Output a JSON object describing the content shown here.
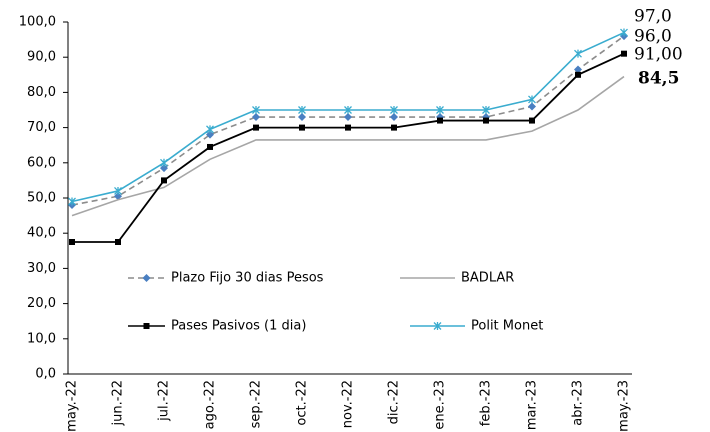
{
  "chart_data": {
    "type": "line",
    "categories": [
      "may.-22",
      "jun.-22",
      "jul.-22",
      "ago.-22",
      "sep.-22",
      "oct.-22",
      "nov.-22",
      "dic.-22",
      "ene.-23",
      "feb.-23",
      "mar.-23",
      "abr.-23",
      "may.-23"
    ],
    "series": [
      {
        "name": "Plazo Fijo 30 dias Pesos",
        "color": "#8c8c8c",
        "marker_color": "#4a7fc1",
        "marker": "diamond",
        "dash": true,
        "values": [
          48,
          50.5,
          58.5,
          68,
          73,
          73,
          73,
          73,
          73,
          73,
          76,
          86.5,
          96
        ],
        "value_labels": [
          null,
          null,
          null,
          null,
          null,
          null,
          null,
          null,
          null,
          null,
          null,
          null,
          "96,0"
        ]
      },
      {
        "name": "BADLAR",
        "color": "#a6a6a6",
        "marker": "none",
        "dash": false,
        "values": [
          45,
          49.5,
          53,
          61,
          66.5,
          66.5,
          66.5,
          66.5,
          66.5,
          66.5,
          69,
          75,
          84.5
        ],
        "value_labels": [
          null,
          null,
          null,
          null,
          null,
          null,
          null,
          null,
          null,
          null,
          null,
          null,
          "84,5"
        ]
      },
      {
        "name": "Pases Pasivos (1 dia)",
        "color": "#000000",
        "marker": "square",
        "dash": false,
        "values": [
          37.5,
          37.5,
          55,
          64.5,
          70,
          70,
          70,
          70,
          72,
          72,
          72,
          85,
          91
        ],
        "value_labels": [
          null,
          null,
          null,
          null,
          null,
          null,
          null,
          null,
          null,
          null,
          null,
          null,
          "91,00"
        ]
      },
      {
        "name": "Polit Monet",
        "color": "#3aaccf",
        "marker": "asterisk",
        "dash": false,
        "values": [
          49,
          52,
          60,
          69.5,
          75,
          75,
          75,
          75,
          75,
          75,
          78,
          91,
          97
        ],
        "value_labels": [
          null,
          null,
          null,
          null,
          null,
          null,
          null,
          null,
          null,
          null,
          null,
          null,
          "97,0"
        ]
      }
    ],
    "ylim": [
      0,
      100
    ],
    "yticks": [
      {
        "value": 0,
        "label": "0,0"
      },
      {
        "value": 10,
        "label": "10,0"
      },
      {
        "value": 20,
        "label": "20,0"
      },
      {
        "value": 30,
        "label": "30,0"
      },
      {
        "value": 40,
        "label": "40,0"
      },
      {
        "value": 50,
        "label": "50,0"
      },
      {
        "value": 60,
        "label": "60,0"
      },
      {
        "value": 70,
        "label": "70,0"
      },
      {
        "value": 80,
        "label": "80,0"
      },
      {
        "value": 90,
        "label": "90,0"
      },
      {
        "value": 100,
        "label": "100,0"
      }
    ],
    "grid": false,
    "legend": "inside-bottom"
  }
}
